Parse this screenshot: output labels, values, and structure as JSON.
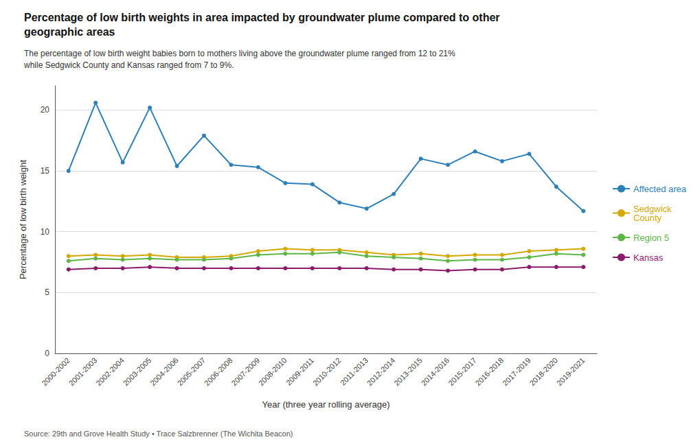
{
  "chart_data": {
    "type": "line",
    "title": "Percentage of low birth weights in area impacted by groundwater plume compared to other\ngeographic areas",
    "subtitle": "The percentage of low birth weight babies born to mothers living above the groundwater plume ranged from 12 to 21%\nwhile Sedgwick County and Kansas ranged from 7 to 9%.",
    "xlabel": "Year (three year rolling average)",
    "ylabel": "Percentage of low birth weight",
    "source": "Source: 29th and Grove Health Study • Trace Salzbrenner (The Wichita Beacon)",
    "categories": [
      "2000-2002",
      "2001-2003",
      "2002-2004",
      "2003-2005",
      "2004-2006",
      "2005-2007",
      "2006-2008",
      "2007-2009",
      "2008-2010",
      "2009-2011",
      "2010-2012",
      "2011-2013",
      "2012-2014",
      "2013-2015",
      "2014-2016",
      "2015-2017",
      "2016-2018",
      "2017-2019",
      "2018-2020",
      "2019-2021"
    ],
    "series": [
      {
        "name": "Affected area",
        "color": "#2d7fb8",
        "values": [
          15.0,
          20.6,
          15.7,
          20.2,
          15.4,
          17.9,
          15.5,
          15.3,
          14.0,
          13.9,
          12.4,
          11.9,
          13.1,
          16.0,
          15.5,
          16.6,
          15.8,
          16.4,
          13.7,
          11.7
        ]
      },
      {
        "name": "Sedgwick\nCounty",
        "color": "#d4a800",
        "values": [
          8.0,
          8.1,
          8.0,
          8.1,
          7.9,
          7.9,
          8.0,
          8.4,
          8.6,
          8.5,
          8.5,
          8.3,
          8.1,
          8.2,
          8.0,
          8.1,
          8.1,
          8.4,
          8.5,
          8.6
        ]
      },
      {
        "name": "Region 5",
        "color": "#5db645",
        "values": [
          7.6,
          7.8,
          7.7,
          7.8,
          7.7,
          7.7,
          7.8,
          8.1,
          8.2,
          8.2,
          8.3,
          8.0,
          7.9,
          7.8,
          7.6,
          7.7,
          7.7,
          7.9,
          8.2,
          8.1
        ]
      },
      {
        "name": "Kansas",
        "color": "#8b1a6b",
        "values": [
          6.9,
          7.0,
          7.0,
          7.1,
          7.0,
          7.0,
          7.0,
          7.0,
          7.0,
          7.0,
          7.0,
          7.0,
          6.9,
          6.9,
          6.8,
          6.9,
          6.9,
          7.1,
          7.1,
          7.1
        ]
      }
    ],
    "ylim": [
      0,
      22
    ],
    "yticks": [
      0,
      5,
      10,
      15,
      20
    ],
    "grid": true,
    "legend": "right",
    "marker": "circle"
  }
}
